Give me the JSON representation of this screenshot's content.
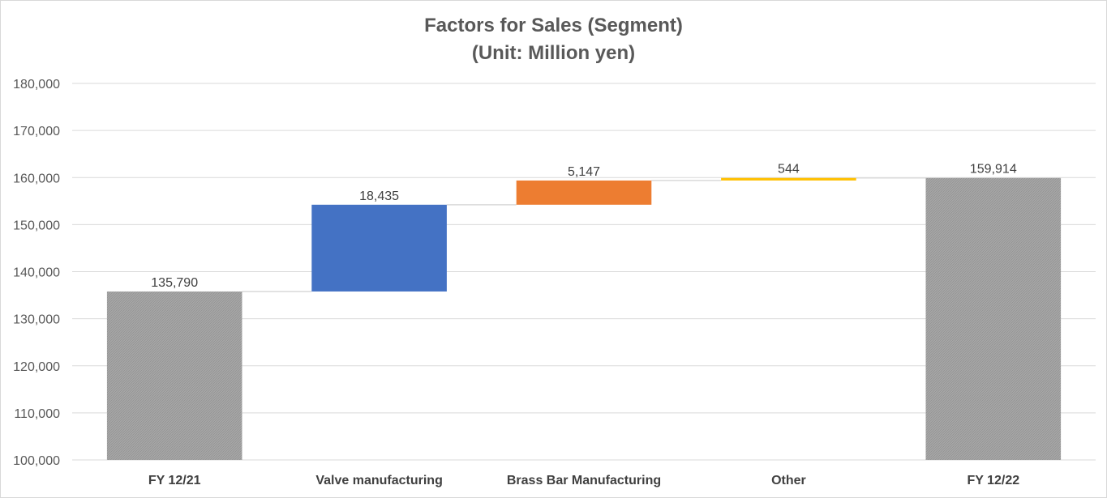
{
  "chart_data": {
    "type": "bar",
    "subtype": "waterfall",
    "title": "Factors for Sales (Segment)",
    "subtitle": "(Unit: Million yen)",
    "xlabel": "",
    "ylabel": "",
    "ylim": [
      100000,
      180000
    ],
    "yticks": [
      100000,
      110000,
      120000,
      130000,
      140000,
      150000,
      160000,
      170000,
      180000
    ],
    "ytick_labels": [
      "100,000",
      "110,000",
      "120,000",
      "130,000",
      "140,000",
      "150,000",
      "160,000",
      "170,000",
      "180,000"
    ],
    "grid": true,
    "legend": "none",
    "categories": [
      "FY 12/21",
      "Valve manufacturing",
      "Brass Bar Manufacturing",
      "Other",
      "FY 12/22"
    ],
    "values": [
      135790,
      18435,
      5147,
      544,
      159914
    ],
    "value_labels": [
      "135,790",
      "18,435",
      "5,147",
      "544",
      "159,914"
    ],
    "kinds": [
      "total",
      "increase",
      "increase",
      "increase",
      "total"
    ],
    "colors": [
      "#a6a6a6",
      "#4472c4",
      "#ed7d31",
      "#ffc000",
      "#a6a6a6"
    ]
  }
}
